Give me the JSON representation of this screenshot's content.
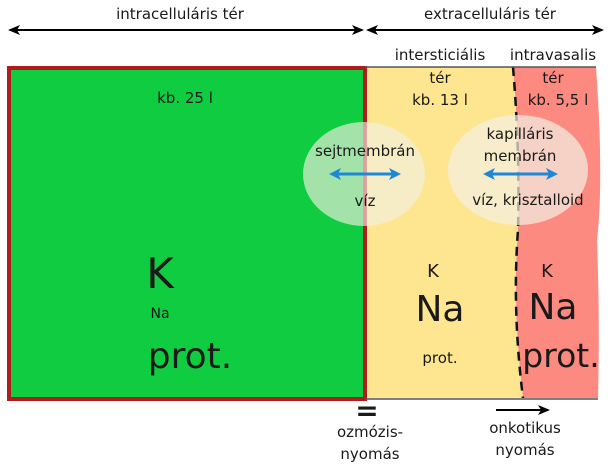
{
  "title_left": "intracelluláris tér",
  "title_right": "extracelluláris tér",
  "intra": {
    "volume": "kb. 25 l",
    "ion_k": "K",
    "ion_na": "Na",
    "ion_prot": "prot."
  },
  "interstitial": {
    "label_line1": "intersticiális",
    "label_line2": "tér",
    "volume": "kb. 13 l",
    "ion_k": "K",
    "ion_na": "Na",
    "ion_prot": "prot."
  },
  "intravascular": {
    "label_line1": "intravasalis",
    "label_line2": "tér",
    "volume": "kb. 5,5 l",
    "ion_k": "K",
    "ion_na": "Na",
    "ion_prot": "prot."
  },
  "membrane_cell": {
    "label": "sejtmembrán",
    "passes": "víz"
  },
  "membrane_capillary": {
    "label_line1": "kapilláris",
    "label_line2": "membrán",
    "passes": "víz, krisztalloid"
  },
  "equals_sign": "=",
  "osmotic_line1": "ozmózis-",
  "osmotic_line2": "nyomás",
  "oncotic_line1": "onkotikus",
  "oncotic_line2": "nyomás",
  "colors": {
    "intra_fill": "#10cc40",
    "intra_border": "#b01c1c",
    "interstitial_fill": "#fde68f",
    "intravascular_fill": "#fc8a80",
    "bubble_fill": "#f3f0e4",
    "arrow_blue": "#1e88d8"
  },
  "icons": {
    "cell_membrane_arrow": "double-arrow-icon",
    "capillary_membrane_arrow": "double-arrow-icon",
    "oncotic_arrow": "right-arrow-icon"
  }
}
